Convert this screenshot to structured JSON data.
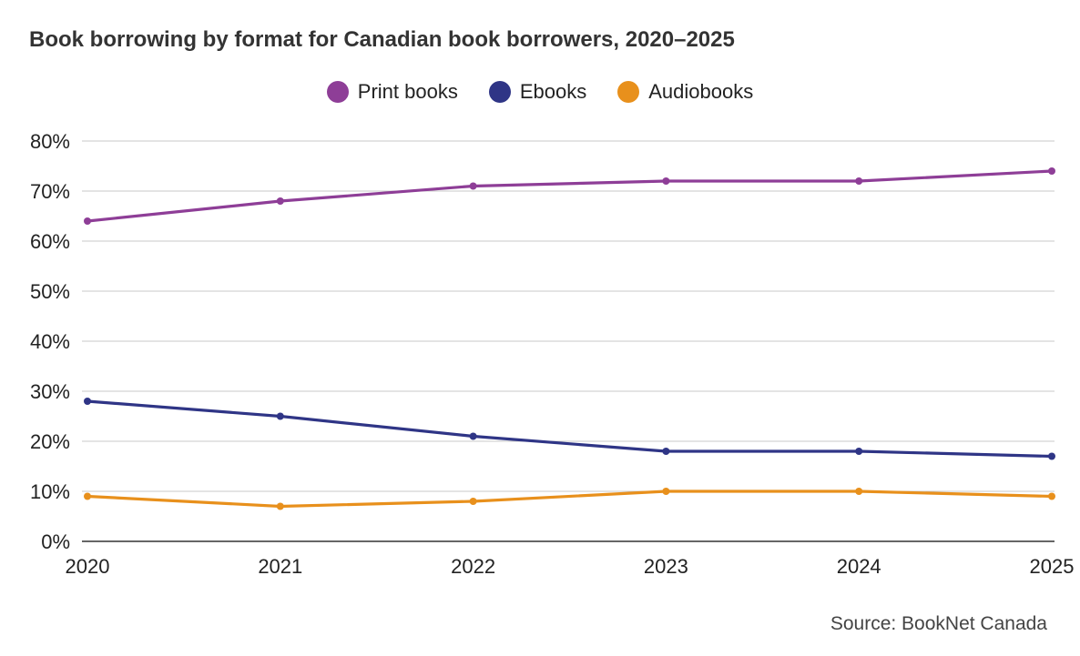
{
  "chart_data": {
    "type": "line",
    "title": "Book borrowing by format for Canadian book borrowers, 2020–2025",
    "xlabel": "",
    "ylabel": "",
    "categories": [
      "2020",
      "2021",
      "2022",
      "2023",
      "2024",
      "2025"
    ],
    "y_ticks": [
      "0%",
      "10%",
      "20%",
      "30%",
      "40%",
      "50%",
      "60%",
      "70%",
      "80%"
    ],
    "ylim": [
      0,
      80
    ],
    "grid": true,
    "legend_position": "top-center",
    "series": [
      {
        "name": "Print books",
        "color": "#8e3e97",
        "values": [
          64,
          68,
          71,
          72,
          72,
          74
        ]
      },
      {
        "name": "Ebooks",
        "color": "#2f3586",
        "values": [
          28,
          25,
          21,
          18,
          18,
          17
        ]
      },
      {
        "name": "Audiobooks",
        "color": "#e8901c",
        "values": [
          9,
          7,
          8,
          10,
          10,
          9
        ]
      }
    ],
    "source": "Source: BookNet Canada"
  }
}
